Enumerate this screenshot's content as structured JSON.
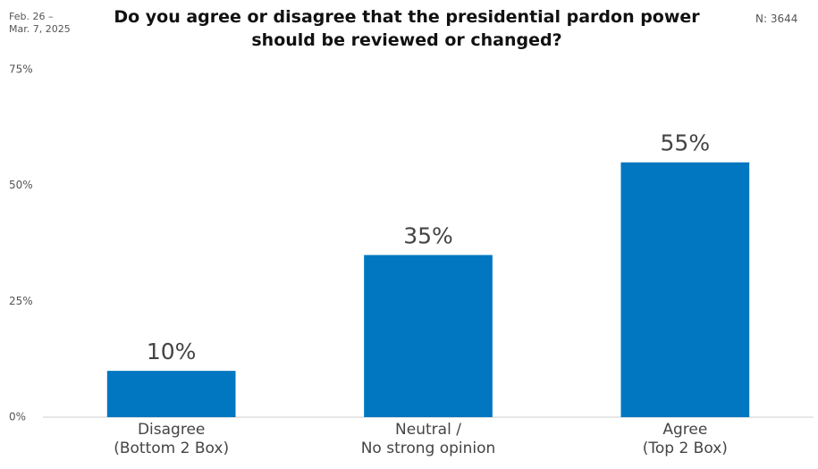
{
  "chart_data": {
    "type": "bar",
    "title": "Do you agree or disagree that the presidential pardon power\nshould be reviewed or changed?",
    "date_note": "Feb. 26 –\nMar. 7, 2025",
    "sample_note": "N: 3644",
    "categories": [
      "Disagree\n(Bottom 2 Box)",
      "Neutral /\nNo strong opinion",
      "Agree\n(Top 2 Box)"
    ],
    "values": [
      10,
      35,
      55
    ],
    "value_labels": [
      "10%",
      "35%",
      "55%"
    ],
    "color": "#0077c0",
    "ylim": [
      0,
      75
    ],
    "yticks": [
      {
        "value": 0,
        "label": "0%"
      },
      {
        "value": 25,
        "label": "25%"
      },
      {
        "value": 50,
        "label": "50%"
      },
      {
        "value": 75,
        "label": "75%"
      }
    ],
    "grid": false
  }
}
